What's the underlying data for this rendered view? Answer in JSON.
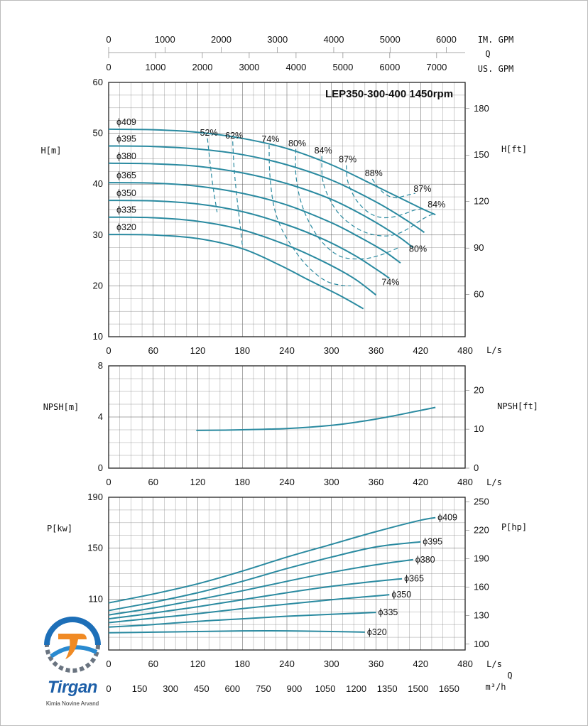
{
  "chart_data": {
    "title": "LEP350-300-400 1450rpm",
    "x_unit": "L/s",
    "x_ticks": [
      0,
      60,
      120,
      180,
      240,
      300,
      360,
      420,
      480
    ],
    "xlim": [
      0,
      480
    ],
    "top_scales": {
      "im_gpm": {
        "label": "IM. GPM",
        "ticks": [
          0,
          1000,
          2000,
          3000,
          4000,
          5000,
          6000
        ]
      },
      "q_label": "Q",
      "us_gpm": {
        "label": "US. GPM",
        "ticks": [
          0,
          1000,
          2000,
          3000,
          4000,
          5000,
          6000,
          7000
        ]
      }
    },
    "bottom_scale": {
      "q_label": "Q",
      "unit": "m³/h",
      "ticks": [
        0,
        150,
        300,
        450,
        600,
        750,
        900,
        1050,
        1200,
        1350,
        1500,
        1650
      ]
    },
    "head": {
      "type": "line",
      "ylabel": "H[m]",
      "ylabel_right": "H[ft]",
      "ylim": [
        10,
        60
      ],
      "y_ticks": [
        10,
        20,
        30,
        40,
        50,
        60
      ],
      "y_ticks_right": [
        60,
        90,
        120,
        150,
        180
      ],
      "series": [
        {
          "name": "ϕ409",
          "x": [
            0,
            60,
            120,
            180,
            240,
            300,
            360,
            420,
            440
          ],
          "y": [
            50.8,
            50.7,
            50.2,
            49.0,
            47.0,
            43.8,
            39.6,
            35.3,
            34.0
          ]
        },
        {
          "name": "ϕ395",
          "x": [
            0,
            60,
            120,
            180,
            240,
            300,
            360,
            400,
            425
          ],
          "y": [
            47.5,
            47.4,
            46.9,
            45.8,
            43.8,
            40.8,
            36.5,
            33.0,
            30.5
          ]
        },
        {
          "name": "ϕ380",
          "x": [
            0,
            60,
            120,
            180,
            240,
            300,
            350,
            390,
            410
          ],
          "y": [
            44.1,
            44.0,
            43.5,
            42.2,
            40.1,
            37.0,
            33.3,
            29.7,
            27.5
          ]
        },
        {
          "name": "ϕ365",
          "x": [
            0,
            60,
            120,
            180,
            240,
            300,
            340,
            370,
            393
          ],
          "y": [
            40.3,
            40.2,
            39.6,
            38.2,
            35.9,
            32.4,
            29.4,
            26.9,
            24.5
          ]
        },
        {
          "name": "ϕ350",
          "x": [
            0,
            60,
            120,
            180,
            240,
            290,
            330,
            360,
            378
          ],
          "y": [
            36.8,
            36.7,
            36.1,
            34.6,
            32.0,
            29.1,
            26.1,
            23.3,
            21.5
          ]
        },
        {
          "name": "ϕ335",
          "x": [
            0,
            60,
            120,
            180,
            240,
            290,
            330,
            360
          ],
          "y": [
            33.5,
            33.4,
            32.7,
            31.0,
            28.0,
            24.7,
            21.5,
            18.2
          ]
        },
        {
          "name": "ϕ320",
          "x": [
            0,
            60,
            120,
            180,
            230,
            270,
            310,
            343
          ],
          "y": [
            30.1,
            30.0,
            29.3,
            27.3,
            24.1,
            21.1,
            18.2,
            15.5
          ]
        }
      ],
      "efficiency": [
        {
          "label": "52%",
          "x": [
            133,
            136,
            140,
            146
          ],
          "y": [
            49.0,
            45.0,
            40.0,
            34.5
          ]
        },
        {
          "label": "62%",
          "x": [
            167,
            169,
            173,
            177,
            180
          ],
          "y": [
            48.4,
            43.0,
            37.0,
            32.0,
            28.0
          ]
        },
        {
          "label": "74%",
          "x": [
            216,
            217,
            222,
            232,
            248,
            268,
            292,
            314,
            326
          ],
          "y": [
            47.7,
            42.0,
            36.0,
            31.5,
            27.5,
            23.8,
            21.0,
            20.1,
            20.0
          ]
        },
        {
          "label": "80%",
          "x": [
            252,
            252,
            258,
            270,
            288,
            312,
            340,
            365,
            390
          ],
          "y": [
            46.9,
            42.0,
            37.0,
            32.5,
            28.5,
            25.8,
            25.3,
            26.0,
            27.5
          ]
        },
        {
          "label": "84%",
          "x": [
            287,
            288,
            296,
            310,
            330,
            350,
            372,
            390,
            405,
            418,
            430,
            440
          ],
          "y": [
            45.5,
            41.0,
            37.5,
            34.2,
            31.7,
            30.3,
            29.8,
            30.3,
            31.4,
            32.7,
            33.7,
            34.3
          ]
        },
        {
          "label": "87%",
          "x": [
            320,
            322,
            332,
            345,
            358,
            371,
            385,
            399,
            412,
            424
          ],
          "y": [
            43.7,
            40.5,
            37.2,
            35.0,
            33.8,
            33.4,
            33.6,
            34.2,
            34.9,
            35.2
          ]
        },
        {
          "label": "88%",
          "x": [
            355,
            362,
            370,
            378,
            387,
            396,
            404,
            413
          ],
          "y": [
            41.0,
            39.5,
            38.3,
            37.6,
            37.3,
            37.6,
            37.9,
            38.2
          ]
        }
      ],
      "efficiency_labels_extra": [
        "87%",
        "84%",
        "80%",
        "74%"
      ]
    },
    "npsh": {
      "type": "line",
      "ylabel": "NPSH[m]",
      "ylabel_right": "NPSH[ft]",
      "ylim": [
        0,
        8
      ],
      "y_ticks": [
        0,
        4,
        8
      ],
      "y_ticks_right": [
        0,
        10,
        20
      ],
      "series": [
        {
          "name": "NPSH",
          "x": [
            118,
            180,
            240,
            300,
            340,
            380,
            410,
            440
          ],
          "y": [
            2.95,
            3.0,
            3.1,
            3.35,
            3.65,
            4.05,
            4.4,
            4.75
          ]
        }
      ]
    },
    "power": {
      "type": "line",
      "ylabel": "P[kw]",
      "ylabel_right": "P[hp]",
      "ylim": [
        70,
        190
      ],
      "y_ticks": [
        110,
        150,
        190
      ],
      "y_ticks_right": [
        100,
        130,
        160,
        190,
        220,
        250
      ],
      "series": [
        {
          "name": "ϕ409",
          "x": [
            0,
            60,
            120,
            180,
            240,
            300,
            360,
            420,
            440
          ],
          "y": [
            107.0,
            114.0,
            122.0,
            132.0,
            143.0,
            153.0,
            163.0,
            172.0,
            174.0
          ]
        },
        {
          "name": "ϕ395",
          "x": [
            0,
            60,
            120,
            180,
            240,
            300,
            360,
            420
          ],
          "y": [
            101.0,
            107.5,
            115.0,
            124.0,
            134.0,
            143.0,
            151.0,
            155.0
          ]
        },
        {
          "name": "ϕ380",
          "x": [
            0,
            60,
            120,
            180,
            240,
            300,
            360,
            410
          ],
          "y": [
            97.5,
            103.0,
            109.5,
            116.5,
            124.0,
            131.0,
            137.0,
            141.0
          ]
        },
        {
          "name": "ϕ365",
          "x": [
            0,
            60,
            120,
            180,
            240,
            300,
            360,
            395
          ],
          "y": [
            94.5,
            99.0,
            104.0,
            109.5,
            115.0,
            120.0,
            124.0,
            126.0
          ]
        },
        {
          "name": "ϕ350",
          "x": [
            0,
            60,
            120,
            180,
            240,
            300,
            360,
            378
          ],
          "y": [
            91.5,
            95.0,
            98.5,
            102.5,
            106.0,
            109.5,
            112.5,
            113.5
          ]
        },
        {
          "name": "ϕ335",
          "x": [
            0,
            60,
            120,
            180,
            240,
            300,
            360
          ],
          "y": [
            88.0,
            90.0,
            92.5,
            94.5,
            96.5,
            98.0,
            99.5
          ]
        },
        {
          "name": "ϕ320",
          "x": [
            0,
            60,
            120,
            180,
            240,
            300,
            345
          ],
          "y": [
            83.5,
            84.0,
            84.5,
            85.0,
            85.0,
            84.5,
            84.0
          ]
        }
      ]
    }
  },
  "logo": {
    "brand": "Tirgan",
    "sub": "Kimia Novine Arvand"
  }
}
